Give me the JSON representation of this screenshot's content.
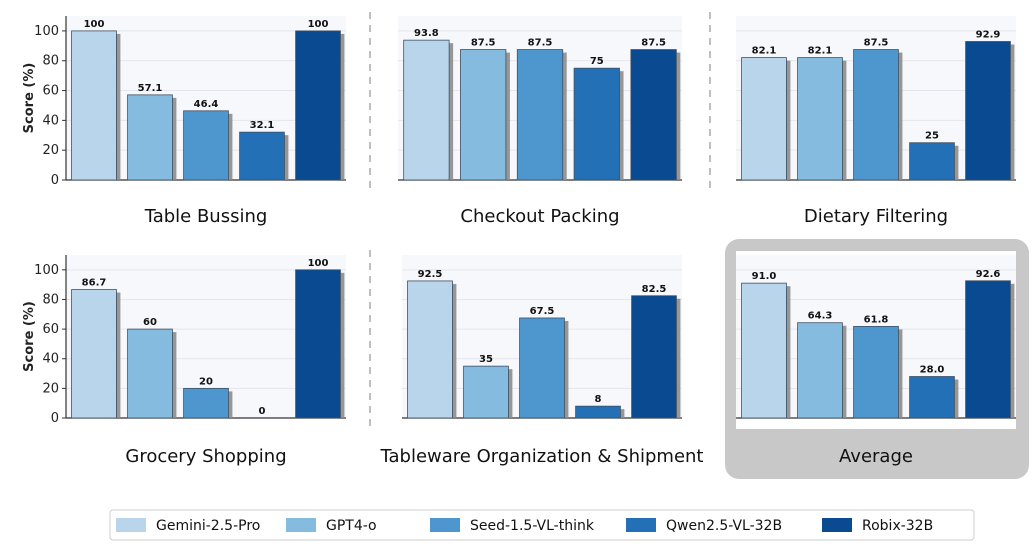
{
  "y_axis_label": "Score (%)",
  "legend": [
    {
      "name": "Gemini-2.5-Pro",
      "color": "#b9d5ec"
    },
    {
      "name": "GPT4-o",
      "color": "#86bbe0"
    },
    {
      "name": "Seed-1.5-VL-think",
      "color": "#4d97ce"
    },
    {
      "name": "Qwen2.5-VL-32B",
      "color": "#2470b6"
    },
    {
      "name": "Robix-32B",
      "color": "#0a4a90"
    }
  ],
  "chart_data": [
    {
      "type": "bar",
      "title": "Table Bussing",
      "ylabel": "Score (%)",
      "ylim": [
        0,
        110
      ],
      "yticks": [
        0,
        20,
        40,
        60,
        80,
        100
      ],
      "categories": [
        "Gemini-2.5-Pro",
        "GPT4-o",
        "Seed-1.5-VL-think",
        "Qwen2.5-VL-32B",
        "Robix-32B"
      ],
      "values": [
        100,
        57.1,
        46.4,
        32.1,
        100
      ],
      "labels": [
        "100",
        "57.1",
        "46.4",
        "32.1",
        "100"
      ]
    },
    {
      "type": "bar",
      "title": "Checkout Packing",
      "ylabel": "",
      "ylim": [
        0,
        110
      ],
      "categories": [
        "Gemini-2.5-Pro",
        "GPT4-o",
        "Seed-1.5-VL-think",
        "Qwen2.5-VL-32B",
        "Robix-32B"
      ],
      "values": [
        93.8,
        87.5,
        87.5,
        75,
        87.5
      ],
      "labels": [
        "93.8",
        "87.5",
        "87.5",
        "75",
        "87.5"
      ]
    },
    {
      "type": "bar",
      "title": "Dietary Filtering",
      "ylabel": "",
      "ylim": [
        0,
        110
      ],
      "categories": [
        "Gemini-2.5-Pro",
        "GPT4-o",
        "Seed-1.5-VL-think",
        "Qwen2.5-VL-32B",
        "Robix-32B"
      ],
      "values": [
        82.1,
        82.1,
        87.5,
        25,
        92.9
      ],
      "labels": [
        "82.1",
        "82.1",
        "87.5",
        "25",
        "92.9"
      ]
    },
    {
      "type": "bar",
      "title": "Grocery Shopping",
      "ylabel": "Score (%)",
      "ylim": [
        0,
        110
      ],
      "yticks": [
        0,
        20,
        40,
        60,
        80,
        100
      ],
      "categories": [
        "Gemini-2.5-Pro",
        "GPT4-o",
        "Seed-1.5-VL-think",
        "Qwen2.5-VL-32B",
        "Robix-32B"
      ],
      "values": [
        86.7,
        60,
        20,
        0,
        100
      ],
      "labels": [
        "86.7",
        "60",
        "20",
        "0",
        "100"
      ]
    },
    {
      "type": "bar",
      "title": "Tableware Organization & Shipment",
      "ylabel": "",
      "ylim": [
        0,
        110
      ],
      "categories": [
        "Gemini-2.5-Pro",
        "GPT4-o",
        "Seed-1.5-VL-think",
        "Qwen2.5-VL-32B",
        "Robix-32B"
      ],
      "values": [
        92.5,
        35,
        67.5,
        8,
        82.5
      ],
      "labels": [
        "92.5",
        "35",
        "67.5",
        "8",
        "82.5"
      ]
    },
    {
      "type": "bar",
      "title": "Average",
      "ylabel": "",
      "ylim": [
        0,
        110
      ],
      "highlighted": true,
      "categories": [
        "Gemini-2.5-Pro",
        "GPT4-o",
        "Seed-1.5-VL-think",
        "Qwen2.5-VL-32B",
        "Robix-32B"
      ],
      "values": [
        91.0,
        64.3,
        61.8,
        28.0,
        92.6
      ],
      "labels": [
        "91.0",
        "64.3",
        "61.8",
        "28.0",
        "92.6"
      ]
    }
  ]
}
